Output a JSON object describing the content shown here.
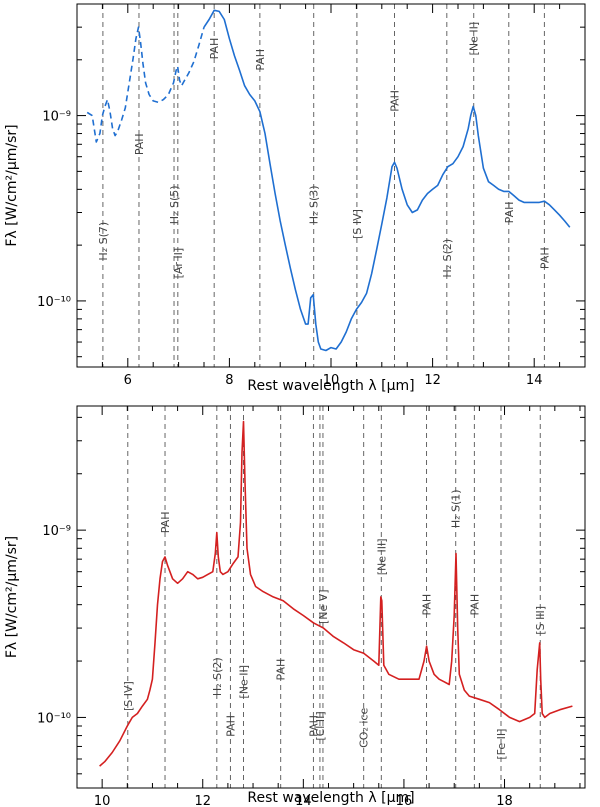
{
  "chart_data": [
    {
      "type": "line",
      "color": "#1f6fd1",
      "xlabel": "Rest wavelength λ [μm]",
      "ylabel": "Fλ [W/cm²/μm/sr]",
      "yscale": "log",
      "xlim": [
        5.0,
        15.0
      ],
      "ylim": [
        4.4e-11,
        4e-09
      ],
      "x_ticks": [
        6,
        8,
        10,
        12,
        14
      ],
      "x_tick_labels": [
        "6",
        "8",
        "10",
        "12",
        "14"
      ],
      "y_ticks": [
        1e-10,
        1e-09
      ],
      "y_tick_labels": [
        "10⁻¹⁰",
        "10⁻⁹"
      ],
      "series": [
        {
          "name": "spectrum-dashed",
          "style": "dashed",
          "x": [
            5.2,
            5.3,
            5.38,
            5.45,
            5.5,
            5.55,
            5.6,
            5.65,
            5.7,
            5.75,
            5.8,
            5.88,
            5.95,
            6.02,
            6.1,
            6.16,
            6.21,
            6.25,
            6.3,
            6.35,
            6.42,
            6.5,
            6.6,
            6.7,
            6.8,
            6.9,
            6.95,
            6.98,
            7.02,
            7.06,
            7.1,
            7.2,
            7.3,
            7.4,
            7.5
          ],
          "y": [
            1.04e-09,
            1e-09,
            7.2e-10,
            8e-10,
            1e-09,
            1.12e-09,
            1.22e-09,
            1.05e-09,
            8.5e-10,
            7.8e-10,
            8.2e-10,
            9.5e-10,
            1.1e-09,
            1.45e-09,
            2e-09,
            2.6e-09,
            3e-09,
            2.5e-09,
            1.9e-09,
            1.5e-09,
            1.3e-09,
            1.2e-09,
            1.18e-09,
            1.22e-09,
            1.3e-09,
            1.5e-09,
            1.75e-09,
            1.85e-09,
            1.55e-09,
            1.45e-09,
            1.52e-09,
            1.7e-09,
            1.95e-09,
            2.4e-09,
            3e-09
          ]
        },
        {
          "name": "spectrum-solid",
          "style": "solid",
          "x": [
            7.5,
            7.6,
            7.7,
            7.8,
            7.9,
            8.0,
            8.1,
            8.2,
            8.3,
            8.4,
            8.5,
            8.6,
            8.7,
            8.8,
            8.9,
            9.0,
            9.1,
            9.2,
            9.3,
            9.4,
            9.5,
            9.55,
            9.6,
            9.65,
            9.7,
            9.75,
            9.8,
            9.9,
            10.0,
            10.1,
            10.2,
            10.3,
            10.4,
            10.5,
            10.6,
            10.7,
            10.8,
            10.9,
            11.0,
            11.1,
            11.2,
            11.25,
            11.3,
            11.4,
            11.5,
            11.6,
            11.7,
            11.8,
            11.9,
            12.0,
            12.1,
            12.2,
            12.3,
            12.4,
            12.5,
            12.6,
            12.7,
            12.75,
            12.8,
            12.85,
            12.9,
            13.0,
            13.1,
            13.2,
            13.3,
            13.4,
            13.5,
            13.6,
            13.7,
            13.8,
            13.9,
            14.0,
            14.1,
            14.2,
            14.3,
            14.4,
            14.5,
            14.6,
            14.7
          ],
          "y": [
            3e-09,
            3.3e-09,
            3.7e-09,
            3.65e-09,
            3.3e-09,
            2.6e-09,
            2.1e-09,
            1.75e-09,
            1.45e-09,
            1.3e-09,
            1.2e-09,
            1.05e-09,
            8e-10,
            5.5e-10,
            3.8e-10,
            2.7e-10,
            2e-10,
            1.5e-10,
            1.15e-10,
            9e-11,
            7.5e-11,
            7.5e-11,
            1.04e-10,
            1.08e-10,
            7.5e-11,
            6e-11,
            5.5e-11,
            5.4e-11,
            5.6e-11,
            5.5e-11,
            6e-11,
            6.8e-11,
            8e-11,
            9e-11,
            9.8e-11,
            1.1e-10,
            1.4e-10,
            1.9e-10,
            2.6e-10,
            3.6e-10,
            5.3e-10,
            5.6e-10,
            5.2e-10,
            4e-10,
            3.3e-10,
            3e-10,
            3.1e-10,
            3.5e-10,
            3.8e-10,
            4e-10,
            4.2e-10,
            4.8e-10,
            5.3e-10,
            5.5e-10,
            6e-10,
            6.8e-10,
            8.5e-10,
            1e-09,
            1.12e-09,
            1e-09,
            7.8e-10,
            5.2e-10,
            4.4e-10,
            4.2e-10,
            4e-10,
            3.9e-10,
            3.9e-10,
            3.7e-10,
            3.5e-10,
            3.4e-10,
            3.4e-10,
            3.4e-10,
            3.4e-10,
            3.45e-10,
            3.3e-10,
            3.1e-10,
            2.9e-10,
            2.7e-10,
            2.5e-10
          ]
        }
      ],
      "annotations": [
        {
          "x": 5.51,
          "label": "H₂ S(7)",
          "text_y": 2.1e-10
        },
        {
          "x": 6.22,
          "label": "PAH",
          "text_y": 7e-10
        },
        {
          "x": 6.91,
          "label": "H₂ S(5)",
          "text_y": 3.3e-10
        },
        {
          "x": 6.985,
          "label": "[Ar II]",
          "text_y": 1.6e-10
        },
        {
          "x": 7.7,
          "label": "PAH",
          "text_y": 2.3e-09
        },
        {
          "x": 8.6,
          "label": "PAH",
          "text_y": 2e-09
        },
        {
          "x": 9.66,
          "label": "H₂ S(3)",
          "text_y": 3.3e-10
        },
        {
          "x": 10.51,
          "label": "[S IV]",
          "text_y": 2.6e-10
        },
        {
          "x": 11.25,
          "label": "PAH",
          "text_y": 1.2e-09
        },
        {
          "x": 12.28,
          "label": "H₂ S(2)",
          "text_y": 1.7e-10
        },
        {
          "x": 12.81,
          "label": "[Ne II]",
          "text_y": 2.6e-09
        },
        {
          "x": 13.5,
          "label": "PAH",
          "text_y": 3e-10
        },
        {
          "x": 14.2,
          "label": "PAH",
          "text_y": 1.7e-10
        }
      ]
    },
    {
      "type": "line",
      "color": "#d42020",
      "xlabel": "Rest wavelength λ [μm]",
      "ylabel": "Fλ [W/cm²/μm/sr]",
      "yscale": "log",
      "xlim": [
        9.5,
        19.6
      ],
      "ylim": [
        4.2e-11,
        4.6e-09
      ],
      "x_ticks": [
        10,
        12,
        14,
        16,
        18
      ],
      "x_tick_labels": [
        "10",
        "12",
        "14",
        "16",
        "18"
      ],
      "y_ticks": [
        1e-10,
        1e-09
      ],
      "y_tick_labels": [
        "10⁻¹⁰",
        "10⁻⁹"
      ],
      "series": [
        {
          "name": "spectrum",
          "style": "solid",
          "x": [
            9.95,
            10.05,
            10.2,
            10.35,
            10.5,
            10.6,
            10.7,
            10.8,
            10.9,
            10.95,
            11.0,
            11.05,
            11.1,
            11.15,
            11.2,
            11.25,
            11.3,
            11.4,
            11.5,
            11.6,
            11.7,
            11.8,
            11.9,
            12.0,
            12.1,
            12.2,
            12.25,
            12.28,
            12.31,
            12.35,
            12.4,
            12.5,
            12.6,
            12.7,
            12.75,
            12.78,
            12.81,
            12.84,
            12.88,
            12.95,
            13.05,
            13.2,
            13.4,
            13.6,
            13.8,
            14.0,
            14.2,
            14.3,
            14.4,
            14.6,
            14.8,
            15.0,
            15.2,
            15.4,
            15.5,
            15.54,
            15.56,
            15.6,
            15.7,
            15.9,
            16.1,
            16.3,
            16.4,
            16.45,
            16.5,
            16.6,
            16.7,
            16.8,
            16.9,
            16.95,
            17.0,
            17.035,
            17.07,
            17.1,
            17.2,
            17.3,
            17.5,
            17.7,
            17.9,
            18.1,
            18.3,
            18.5,
            18.6,
            18.65,
            18.7,
            18.72,
            18.75,
            18.8,
            18.9,
            19.1,
            19.35
          ],
          "y": [
            5.5e-11,
            5.8e-11,
            6.5e-11,
            7.5e-11,
            9e-11,
            1e-10,
            1.05e-10,
            1.15e-10,
            1.25e-10,
            1.4e-10,
            1.6e-10,
            2.5e-10,
            4e-10,
            5.5e-10,
            6.8e-10,
            7.2e-10,
            6.5e-10,
            5.5e-10,
            5.2e-10,
            5.5e-10,
            6e-10,
            5.8e-10,
            5.5e-10,
            5.6e-10,
            5.8e-10,
            6e-10,
            7.5e-10,
            9.7e-10,
            7.2e-10,
            6e-10,
            5.8e-10,
            6e-10,
            6.6e-10,
            7.2e-10,
            1.1e-09,
            2.6e-09,
            3.8e-09,
            1.8e-09,
            8e-10,
            5.8e-10,
            5e-10,
            4.7e-10,
            4.4e-10,
            4.2e-10,
            3.8e-10,
            3.5e-10,
            3.2e-10,
            3.1e-10,
            3e-10,
            2.7e-10,
            2.5e-10,
            2.3e-10,
            2.2e-10,
            2e-10,
            1.9e-10,
            4.4e-10,
            4.2e-10,
            1.9e-10,
            1.7e-10,
            1.6e-10,
            1.6e-10,
            1.6e-10,
            2e-10,
            2.4e-10,
            2e-10,
            1.7e-10,
            1.6e-10,
            1.55e-10,
            1.5e-10,
            2e-10,
            3.5e-10,
            7.5e-10,
            3e-10,
            1.7e-10,
            1.4e-10,
            1.3e-10,
            1.25e-10,
            1.2e-10,
            1.1e-10,
            1e-10,
            9.5e-11,
            1e-10,
            1.05e-10,
            1.8e-10,
            2.5e-10,
            1.6e-10,
            1.05e-10,
            1e-10,
            1.05e-10,
            1.1e-10,
            1.15e-10
          ]
        }
      ],
      "annotations": [
        {
          "x": 10.51,
          "label": "[S IV]",
          "text_y": 1.3e-10
        },
        {
          "x": 11.25,
          "label": "PAH",
          "text_y": 1.1e-09
        },
        {
          "x": 12.28,
          "label": "H₂ S(2)",
          "text_y": 1.65e-10
        },
        {
          "x": 12.55,
          "label": "PAH",
          "text_y": 9e-11
        },
        {
          "x": 12.81,
          "label": "[Ne II]",
          "text_y": 1.55e-10
        },
        {
          "x": 13.55,
          "label": "PAH",
          "text_y": 1.8e-10
        },
        {
          "x": 14.2,
          "label": "PAH",
          "text_y": 9e-11
        },
        {
          "x": 14.33,
          "label": "[Cl II]",
          "text_y": 9e-11
        },
        {
          "x": 14.39,
          "label": "[Ne V]",
          "text_y": 3.9e-10
        },
        {
          "x": 15.2,
          "label": "CO₂ ice",
          "text_y": 8.8e-11
        },
        {
          "x": 15.55,
          "label": "[Ne III]",
          "text_y": 7.2e-10
        },
        {
          "x": 16.45,
          "label": "PAH",
          "text_y": 4e-10
        },
        {
          "x": 17.03,
          "label": "H₂ S(1)",
          "text_y": 1.3e-09
        },
        {
          "x": 17.4,
          "label": "PAH",
          "text_y": 4e-10
        },
        {
          "x": 17.93,
          "label": "[Fe II]",
          "text_y": 7.2e-11
        },
        {
          "x": 18.71,
          "label": "[S III]",
          "text_y": 3.3e-10
        }
      ]
    }
  ]
}
